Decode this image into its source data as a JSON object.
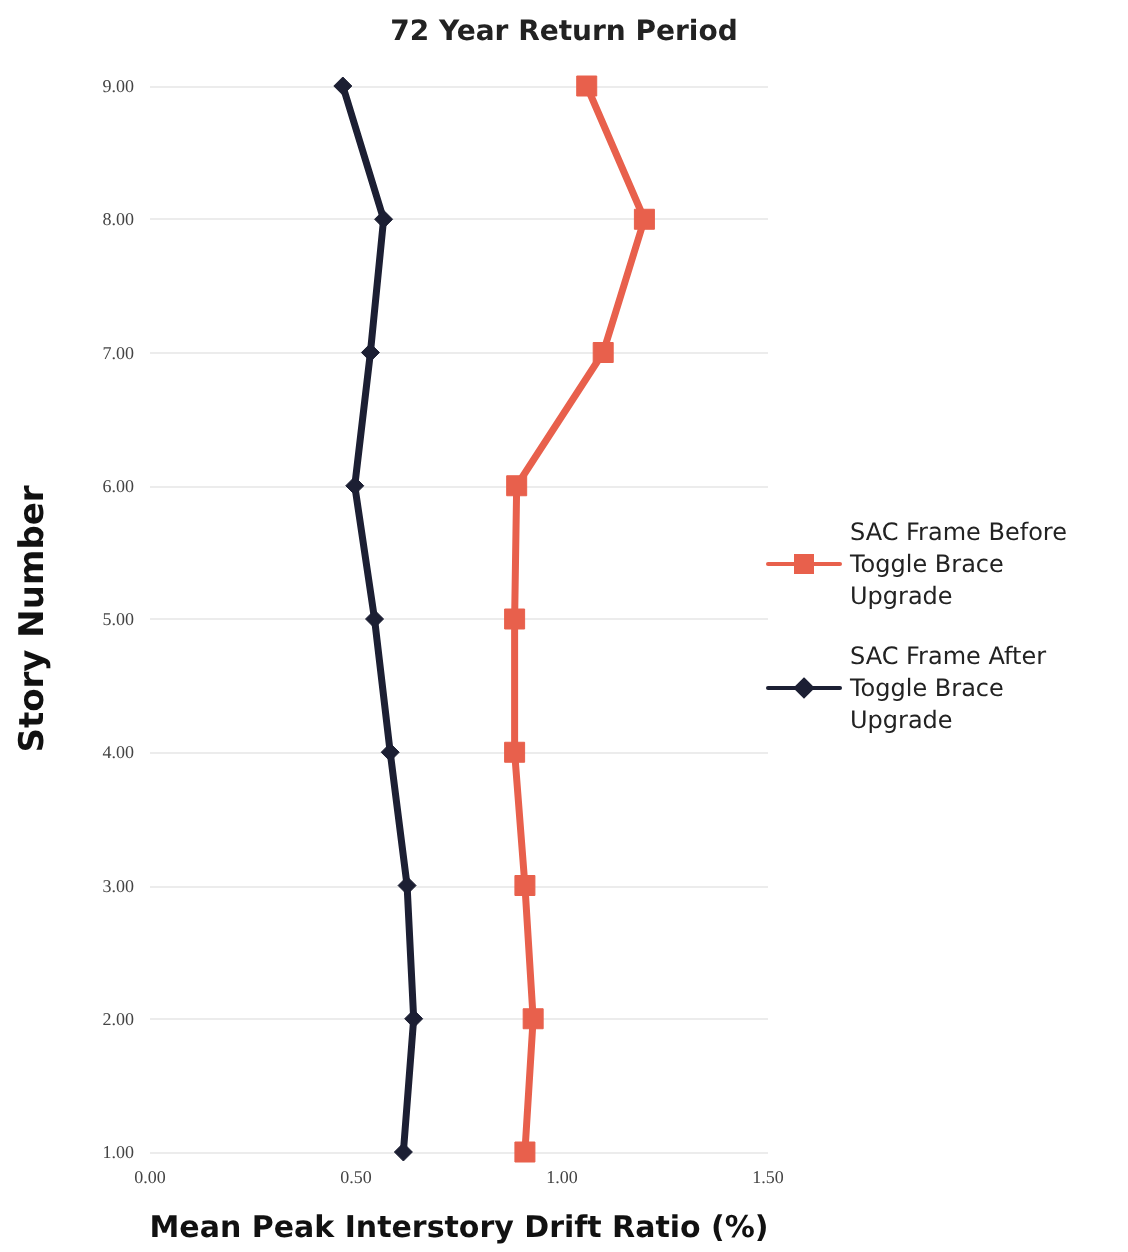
{
  "chart_data": {
    "type": "line",
    "title": "72 Year Return Period",
    "xlabel": "Mean Peak Interstory Drift Ratio (%)",
    "ylabel": "Story Number",
    "xlim": [
      0,
      1.5
    ],
    "xticks": [
      {
        "value": 0,
        "label": "0.00"
      },
      {
        "value": 0.5,
        "label": "0.50"
      },
      {
        "value": 1,
        "label": "1.00"
      },
      {
        "value": 1.5,
        "label": "1.50"
      }
    ],
    "ylim": [
      1,
      9
    ],
    "yticks": [
      {
        "value": 1,
        "label": "1.00"
      },
      {
        "value": 2,
        "label": "2.00"
      },
      {
        "value": 3,
        "label": "3.00"
      },
      {
        "value": 4,
        "label": "4.00"
      },
      {
        "value": 5,
        "label": "5.00"
      },
      {
        "value": 6,
        "label": "6.00"
      },
      {
        "value": 7,
        "label": "7.00"
      },
      {
        "value": 8,
        "label": "8.00"
      },
      {
        "value": 9,
        "label": "9.00"
      }
    ],
    "grid": "y",
    "legend": "right",
    "line_style": "solid",
    "series": [
      {
        "name": "SAC Frame Before Toggle Brace Upgrade",
        "color": "#e8604c",
        "marker": "square",
        "x": [
          0.91,
          0.93,
          0.91,
          0.885,
          0.885,
          0.89,
          1.1,
          1.2,
          1.06
        ],
        "values": [
          1,
          2,
          3,
          4,
          5,
          6,
          7,
          8,
          9
        ]
      },
      {
        "name": "SAC Frame After Toggle Brace Upgrade",
        "color": "#1c1f33",
        "marker": "diamond",
        "x": [
          0.615,
          0.64,
          0.624,
          0.583,
          0.545,
          0.497,
          0.535,
          0.567,
          0.468
        ],
        "values": [
          1,
          2,
          3,
          4,
          5,
          6,
          7,
          8,
          9
        ]
      }
    ]
  }
}
